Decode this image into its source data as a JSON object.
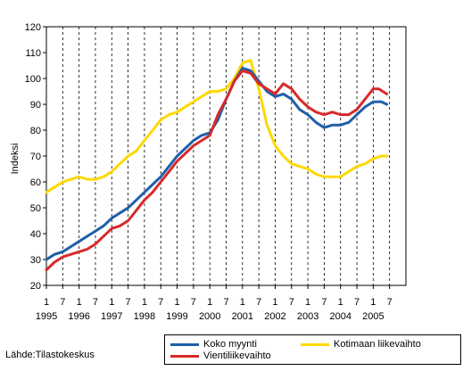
{
  "source_text": "Lähde:Tilastokeskus",
  "chart_data": {
    "type": "line",
    "ylabel": "Indeksi",
    "ylim": [
      20,
      120
    ],
    "yticks": [
      20,
      30,
      40,
      50,
      60,
      70,
      80,
      90,
      100,
      110,
      120
    ],
    "x_start": "1995-01",
    "x_end": "2005-12",
    "month_tick_labels": [
      "1",
      "7",
      "1",
      "7",
      "1",
      "7",
      "1",
      "7",
      "1",
      "7",
      "1",
      "7",
      "1",
      "7",
      "1",
      "7",
      "1",
      "7",
      "1",
      "7",
      "1",
      "7"
    ],
    "year_labels": [
      "1995",
      "1996",
      "1997",
      "1998",
      "1999",
      "2000",
      "2001",
      "2002",
      "2003",
      "2004",
      "2005"
    ],
    "grid": "vertical dashed",
    "legend_position": "bottom-right",
    "series": [
      {
        "name": "Koko myynti",
        "color": "#1f5fa8",
        "points": [
          [
            "1995-01",
            30
          ],
          [
            "1995-04",
            32
          ],
          [
            "1995-07",
            33
          ],
          [
            "1995-10",
            35
          ],
          [
            "1996-01",
            37
          ],
          [
            "1996-04",
            39
          ],
          [
            "1996-07",
            41
          ],
          [
            "1996-10",
            43
          ],
          [
            "1997-01",
            46
          ],
          [
            "1997-04",
            48
          ],
          [
            "1997-07",
            50
          ],
          [
            "1997-10",
            53
          ],
          [
            "1998-01",
            56
          ],
          [
            "1998-04",
            59
          ],
          [
            "1998-07",
            62
          ],
          [
            "1998-10",
            66
          ],
          [
            "1999-01",
            70
          ],
          [
            "1999-04",
            73
          ],
          [
            "1999-07",
            76
          ],
          [
            "1999-10",
            78
          ],
          [
            "2000-01",
            79
          ],
          [
            "2000-04",
            84
          ],
          [
            "2000-07",
            92
          ],
          [
            "2000-10",
            99
          ],
          [
            "2001-01",
            104
          ],
          [
            "2001-04",
            103
          ],
          [
            "2001-07",
            99
          ],
          [
            "2001-10",
            95
          ],
          [
            "2002-01",
            93
          ],
          [
            "2002-04",
            94
          ],
          [
            "2002-07",
            92
          ],
          [
            "2002-10",
            88
          ],
          [
            "2003-01",
            86
          ],
          [
            "2003-04",
            83
          ],
          [
            "2003-07",
            81
          ],
          [
            "2003-10",
            82
          ],
          [
            "2004-01",
            82
          ],
          [
            "2004-04",
            83
          ],
          [
            "2004-07",
            86
          ],
          [
            "2004-10",
            89
          ],
          [
            "2005-01",
            91
          ],
          [
            "2005-04",
            91
          ],
          [
            "2005-06",
            90
          ]
        ]
      },
      {
        "name": "Vientiliikevaihto",
        "color": "#d62a2a",
        "points": [
          [
            "1995-01",
            26
          ],
          [
            "1995-04",
            29
          ],
          [
            "1995-07",
            31
          ],
          [
            "1995-10",
            32
          ],
          [
            "1996-01",
            33
          ],
          [
            "1996-04",
            34
          ],
          [
            "1996-07",
            36
          ],
          [
            "1996-10",
            39
          ],
          [
            "1997-01",
            42
          ],
          [
            "1997-04",
            43
          ],
          [
            "1997-07",
            45
          ],
          [
            "1997-10",
            49
          ],
          [
            "1998-01",
            53
          ],
          [
            "1998-04",
            56
          ],
          [
            "1998-07",
            60
          ],
          [
            "1998-10",
            64
          ],
          [
            "1999-01",
            68
          ],
          [
            "1999-04",
            71
          ],
          [
            "1999-07",
            74
          ],
          [
            "1999-10",
            76
          ],
          [
            "2000-01",
            78
          ],
          [
            "2000-04",
            86
          ],
          [
            "2000-07",
            92
          ],
          [
            "2000-10",
            99
          ],
          [
            "2001-01",
            103
          ],
          [
            "2001-04",
            102
          ],
          [
            "2001-07",
            98
          ],
          [
            "2001-10",
            96
          ],
          [
            "2002-01",
            94
          ],
          [
            "2002-04",
            98
          ],
          [
            "2002-07",
            96
          ],
          [
            "2002-10",
            92
          ],
          [
            "2003-01",
            89
          ],
          [
            "2003-04",
            87
          ],
          [
            "2003-07",
            86
          ],
          [
            "2003-10",
            87
          ],
          [
            "2004-01",
            86
          ],
          [
            "2004-04",
            86
          ],
          [
            "2004-07",
            88
          ],
          [
            "2004-10",
            92
          ],
          [
            "2005-01",
            96
          ],
          [
            "2005-03",
            96
          ],
          [
            "2005-06",
            94
          ]
        ]
      },
      {
        "name": "Kotimaan liikevaihto",
        "color": "#ffd800",
        "points": [
          [
            "1995-01",
            56
          ],
          [
            "1995-04",
            58
          ],
          [
            "1995-07",
            60
          ],
          [
            "1995-10",
            61
          ],
          [
            "1996-01",
            62
          ],
          [
            "1996-04",
            61
          ],
          [
            "1996-07",
            61
          ],
          [
            "1996-10",
            62
          ],
          [
            "1997-01",
            64
          ],
          [
            "1997-04",
            67
          ],
          [
            "1997-07",
            70
          ],
          [
            "1997-10",
            72
          ],
          [
            "1998-01",
            76
          ],
          [
            "1998-04",
            80
          ],
          [
            "1998-07",
            84
          ],
          [
            "1998-10",
            86
          ],
          [
            "1999-01",
            87
          ],
          [
            "1999-04",
            89
          ],
          [
            "1999-07",
            91
          ],
          [
            "1999-10",
            93
          ],
          [
            "2000-01",
            95
          ],
          [
            "2000-04",
            95
          ],
          [
            "2000-07",
            96
          ],
          [
            "2000-10",
            100
          ],
          [
            "2001-01",
            106
          ],
          [
            "2001-04",
            107
          ],
          [
            "2001-07",
            96
          ],
          [
            "2001-10",
            82
          ],
          [
            "2002-01",
            74
          ],
          [
            "2002-04",
            70
          ],
          [
            "2002-07",
            67
          ],
          [
            "2002-10",
            66
          ],
          [
            "2003-01",
            65
          ],
          [
            "2003-04",
            63
          ],
          [
            "2003-07",
            62
          ],
          [
            "2003-10",
            62
          ],
          [
            "2004-01",
            62
          ],
          [
            "2004-04",
            64
          ],
          [
            "2004-07",
            66
          ],
          [
            "2004-10",
            67
          ],
          [
            "2005-01",
            69
          ],
          [
            "2005-04",
            70
          ],
          [
            "2005-06",
            70
          ]
        ]
      }
    ]
  }
}
